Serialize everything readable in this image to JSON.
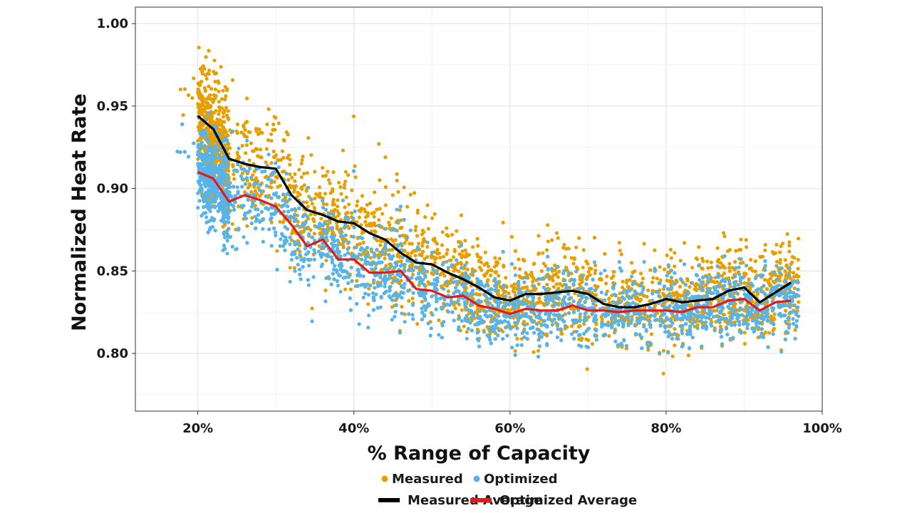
{
  "chart_data": {
    "type": "scatter",
    "title": "",
    "xlabel": "% Range of Capacity",
    "ylabel": "Normalized Heat Rate",
    "xlim": [
      0.12,
      1.0
    ],
    "ylim": [
      0.765,
      1.01
    ],
    "x_ticks": [
      {
        "value": 0.2,
        "label": "20%"
      },
      {
        "value": 0.4,
        "label": "40%"
      },
      {
        "value": 0.6,
        "label": "60%"
      },
      {
        "value": 0.8,
        "label": "80%"
      },
      {
        "value": 1.0,
        "label": "100%"
      }
    ],
    "y_ticks": [
      {
        "value": 0.8,
        "label": "0.80"
      },
      {
        "value": 0.85,
        "label": "0.85"
      },
      {
        "value": 0.9,
        "label": "0.90"
      },
      {
        "value": 0.95,
        "label": "0.95"
      },
      {
        "value": 1.0,
        "label": "1.00"
      }
    ],
    "grid": true,
    "legend_position": "bottom",
    "scatter_series": [
      {
        "name": "Measured",
        "color": "#E69F00",
        "n_points_shown_approx": 20000,
        "center_curve": [
          [
            0.2,
            0.945
          ],
          [
            0.22,
            0.93
          ],
          [
            0.24,
            0.915
          ],
          [
            0.26,
            0.913
          ],
          [
            0.28,
            0.912
          ],
          [
            0.3,
            0.91
          ],
          [
            0.32,
            0.895
          ],
          [
            0.34,
            0.887
          ],
          [
            0.36,
            0.883
          ],
          [
            0.38,
            0.879
          ],
          [
            0.4,
            0.878
          ],
          [
            0.42,
            0.872
          ],
          [
            0.44,
            0.868
          ],
          [
            0.46,
            0.86
          ],
          [
            0.48,
            0.855
          ],
          [
            0.5,
            0.853
          ],
          [
            0.52,
            0.849
          ],
          [
            0.54,
            0.845
          ],
          [
            0.56,
            0.84
          ],
          [
            0.58,
            0.835
          ],
          [
            0.6,
            0.833
          ],
          [
            0.62,
            0.836
          ],
          [
            0.64,
            0.837
          ],
          [
            0.66,
            0.837
          ],
          [
            0.68,
            0.838
          ],
          [
            0.7,
            0.836
          ],
          [
            0.72,
            0.83
          ],
          [
            0.74,
            0.829
          ],
          [
            0.76,
            0.829
          ],
          [
            0.78,
            0.83
          ],
          [
            0.8,
            0.833
          ],
          [
            0.82,
            0.831
          ],
          [
            0.84,
            0.833
          ],
          [
            0.86,
            0.833
          ],
          [
            0.88,
            0.837
          ],
          [
            0.9,
            0.839
          ],
          [
            0.92,
            0.832
          ],
          [
            0.94,
            0.838
          ],
          [
            0.96,
            0.843
          ]
        ],
        "spread": 0.025
      },
      {
        "name": "Optimized",
        "color": "#56B4E9",
        "n_points_shown_approx": 20000,
        "center_curve": [
          [
            0.2,
            0.91
          ],
          [
            0.22,
            0.905
          ],
          [
            0.24,
            0.893
          ],
          [
            0.26,
            0.896
          ],
          [
            0.28,
            0.893
          ],
          [
            0.3,
            0.889
          ],
          [
            0.32,
            0.878
          ],
          [
            0.34,
            0.865
          ],
          [
            0.36,
            0.869
          ],
          [
            0.38,
            0.857
          ],
          [
            0.4,
            0.858
          ],
          [
            0.42,
            0.849
          ],
          [
            0.44,
            0.849
          ],
          [
            0.46,
            0.85
          ],
          [
            0.48,
            0.839
          ],
          [
            0.5,
            0.838
          ],
          [
            0.52,
            0.834
          ],
          [
            0.54,
            0.835
          ],
          [
            0.56,
            0.829
          ],
          [
            0.58,
            0.827
          ],
          [
            0.6,
            0.824
          ],
          [
            0.62,
            0.827
          ],
          [
            0.64,
            0.826
          ],
          [
            0.66,
            0.826
          ],
          [
            0.68,
            0.829
          ],
          [
            0.7,
            0.826
          ],
          [
            0.72,
            0.826
          ],
          [
            0.74,
            0.825
          ],
          [
            0.76,
            0.826
          ],
          [
            0.78,
            0.826
          ],
          [
            0.8,
            0.826
          ],
          [
            0.82,
            0.825
          ],
          [
            0.84,
            0.828
          ],
          [
            0.86,
            0.828
          ],
          [
            0.88,
            0.832
          ],
          [
            0.9,
            0.833
          ],
          [
            0.92,
            0.826
          ],
          [
            0.94,
            0.831
          ],
          [
            0.96,
            0.832
          ]
        ],
        "spread": 0.02
      }
    ],
    "series": [
      {
        "name": "Measured Average",
        "color": "#000000",
        "x": [
          0.2,
          0.22,
          0.24,
          0.26,
          0.28,
          0.3,
          0.32,
          0.34,
          0.36,
          0.38,
          0.4,
          0.42,
          0.44,
          0.46,
          0.48,
          0.5,
          0.52,
          0.54,
          0.56,
          0.58,
          0.6,
          0.62,
          0.64,
          0.66,
          0.68,
          0.7,
          0.72,
          0.74,
          0.76,
          0.78,
          0.8,
          0.82,
          0.84,
          0.86,
          0.88,
          0.9,
          0.92,
          0.94,
          0.96
        ],
        "y": [
          0.944,
          0.936,
          0.918,
          0.915,
          0.913,
          0.912,
          0.896,
          0.887,
          0.884,
          0.88,
          0.879,
          0.873,
          0.869,
          0.861,
          0.855,
          0.854,
          0.849,
          0.845,
          0.84,
          0.834,
          0.832,
          0.836,
          0.836,
          0.837,
          0.838,
          0.836,
          0.83,
          0.828,
          0.828,
          0.83,
          0.833,
          0.831,
          0.832,
          0.833,
          0.838,
          0.84,
          0.831,
          0.837,
          0.843
        ]
      },
      {
        "name": "Optimized Average",
        "color": "#E31A1C",
        "x": [
          0.2,
          0.22,
          0.24,
          0.26,
          0.28,
          0.3,
          0.32,
          0.34,
          0.36,
          0.38,
          0.4,
          0.42,
          0.44,
          0.46,
          0.48,
          0.5,
          0.52,
          0.54,
          0.56,
          0.58,
          0.6,
          0.62,
          0.64,
          0.66,
          0.68,
          0.7,
          0.72,
          0.74,
          0.76,
          0.78,
          0.8,
          0.82,
          0.84,
          0.86,
          0.88,
          0.9,
          0.92,
          0.94,
          0.96
        ],
        "y": [
          0.91,
          0.906,
          0.892,
          0.896,
          0.893,
          0.889,
          0.878,
          0.865,
          0.869,
          0.857,
          0.857,
          0.849,
          0.849,
          0.85,
          0.839,
          0.838,
          0.834,
          0.835,
          0.829,
          0.827,
          0.824,
          0.827,
          0.826,
          0.826,
          0.829,
          0.826,
          0.826,
          0.825,
          0.826,
          0.826,
          0.826,
          0.825,
          0.828,
          0.828,
          0.832,
          0.833,
          0.826,
          0.831,
          0.832
        ]
      }
    ],
    "legend": [
      {
        "label": "Measured",
        "kind": "point",
        "color": "#E69F00"
      },
      {
        "label": "Measured Average",
        "kind": "line",
        "color": "#000000"
      },
      {
        "label": "Optimized",
        "kind": "point",
        "color": "#56B4E9"
      },
      {
        "label": "Optimized Average",
        "kind": "line",
        "color": "#E31A1C"
      }
    ]
  }
}
